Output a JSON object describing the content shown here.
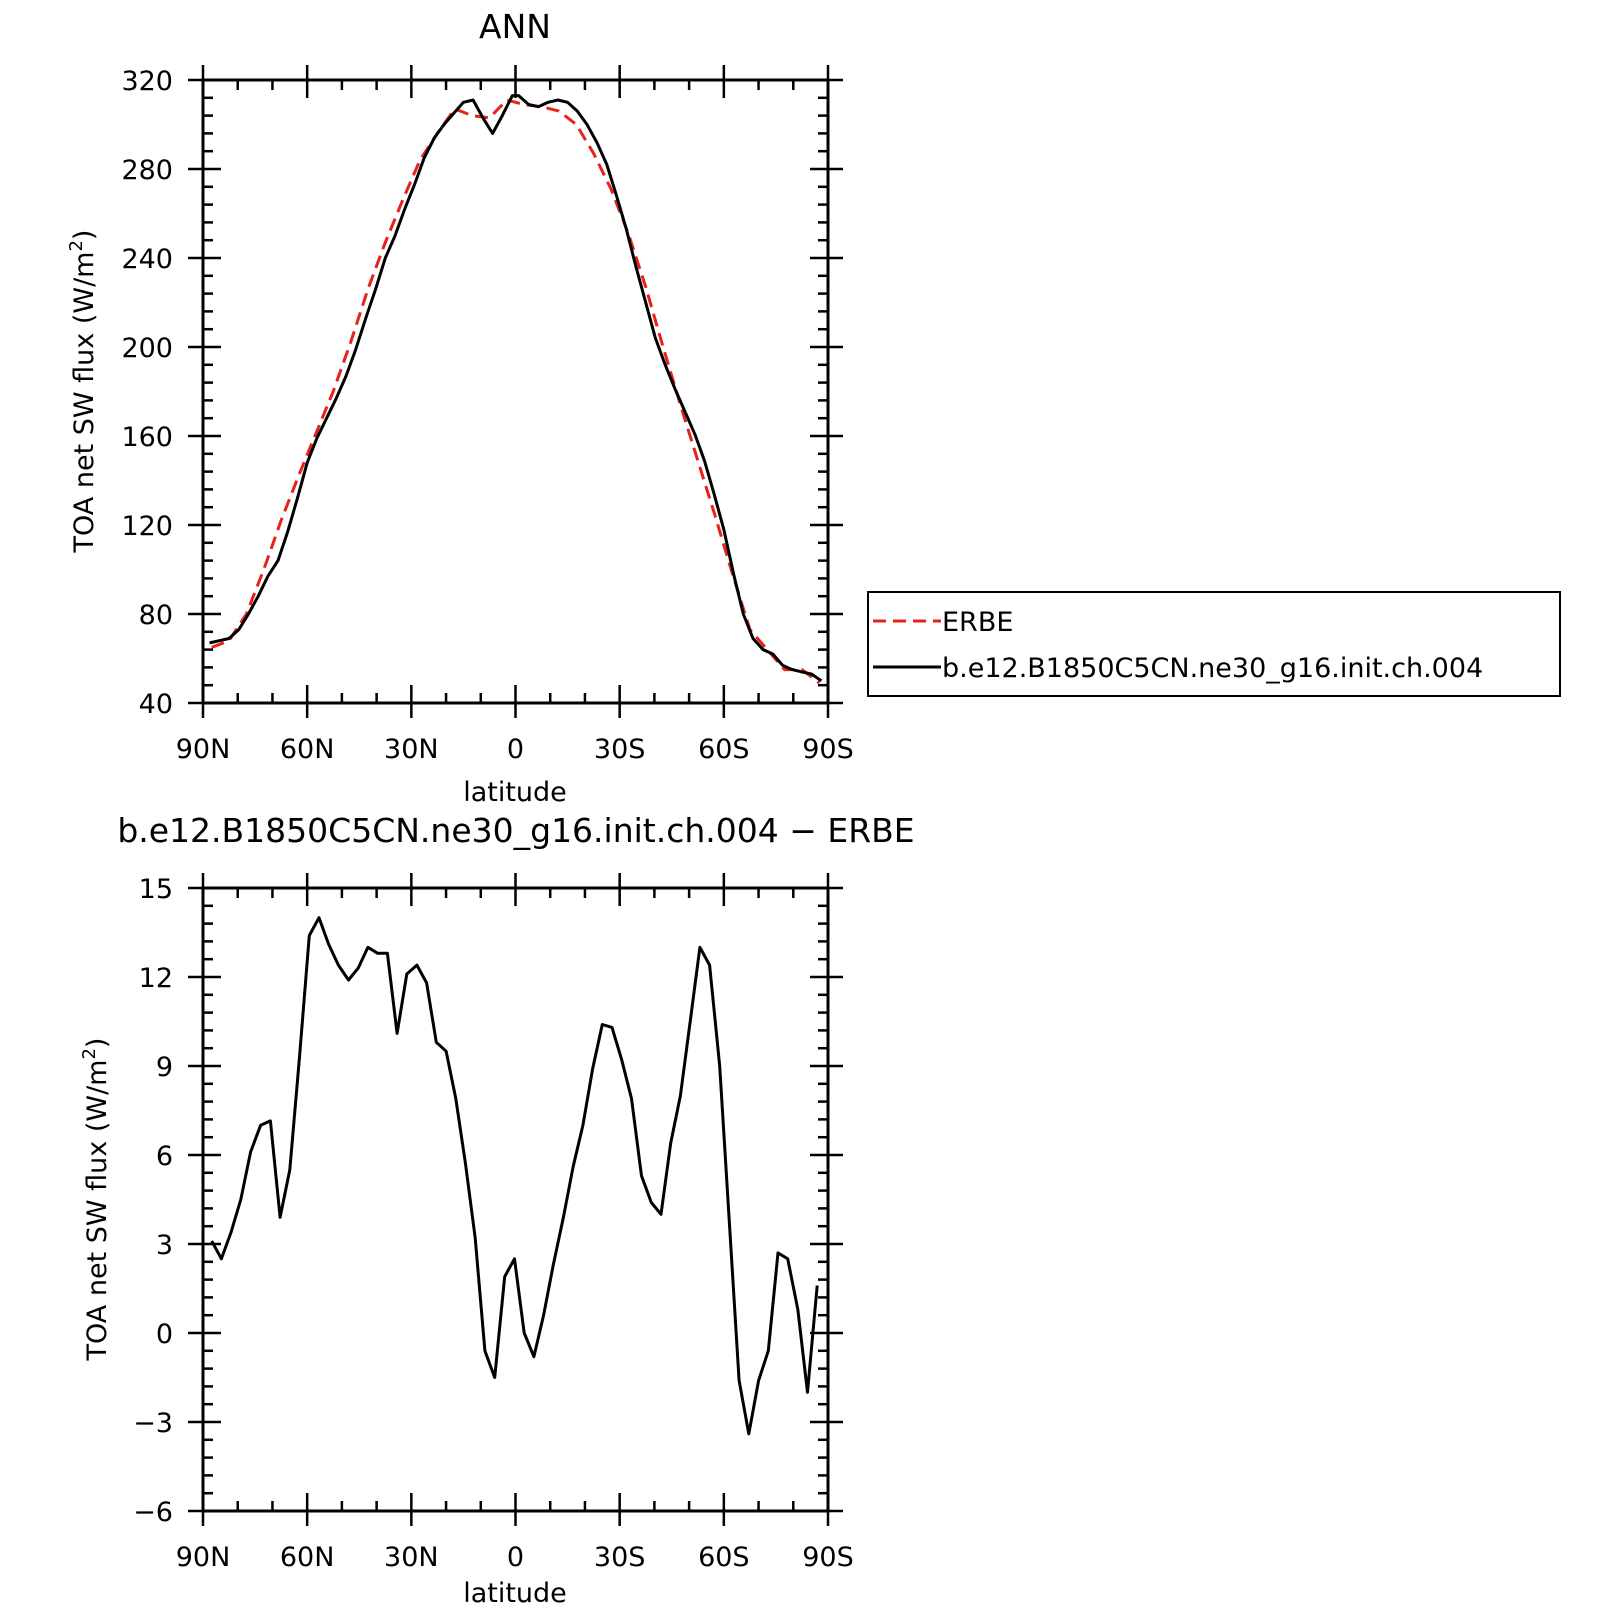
{
  "colors": {
    "obs": "#e8221b",
    "model": "#000000"
  },
  "chart_data": [
    {
      "type": "line",
      "title": "ANN",
      "xlabel": "latitude",
      "ylabel": "TOA net SW flux (W/m2)",
      "ylabel_parts": {
        "main": "TOA net SW flux (W/m",
        "sup": "2",
        "close": ")"
      },
      "xlim": [
        90,
        -90
      ],
      "ylim": [
        40,
        320
      ],
      "xticks": [
        90,
        60,
        30,
        0,
        -30,
        -60,
        -90
      ],
      "xtick_labels": [
        "90N",
        "60N",
        "30N",
        "0",
        "30S",
        "60S",
        "90S"
      ],
      "yticks": [
        40,
        80,
        120,
        160,
        200,
        240,
        280,
        320
      ],
      "ytick_labels": [
        "40",
        "80",
        "120",
        "160",
        "200",
        "240",
        "280",
        "320"
      ],
      "legend": {
        "placement": "right",
        "entries": [
          "ERBE",
          "b.e12.B1850C5CN.ne30_g16.init.ch.004"
        ]
      },
      "series": [
        {
          "name": "ERBE",
          "style": "dashed",
          "color": "#e8221b",
          "x": [
            87.5,
            82.5,
            77.5,
            72.5,
            67.5,
            62.5,
            57.5,
            52.5,
            47.5,
            42.5,
            37.5,
            32.5,
            27.5,
            22.5,
            17.5,
            12.5,
            7.5,
            2.5,
            -2.5,
            -7.5,
            -12.5,
            -17.5,
            -22.5,
            -27.5,
            -32.5,
            -37.5,
            -42.5,
            -47.5,
            -52.5,
            -57.5,
            -62.5,
            -67.5,
            -72.5,
            -77.5,
            -82.5,
            -87.5
          ],
          "y": [
            65,
            68,
            80,
            100,
            122,
            142,
            161,
            180,
            202,
            226,
            247,
            266,
            284,
            296,
            307,
            304,
            303,
            311,
            309,
            308,
            306,
            300,
            287,
            271,
            251,
            227,
            200,
            174,
            149,
            124,
            98,
            73,
            64,
            55,
            55,
            49
          ]
        },
        {
          "name": "b.e12.B1850C5CN.ne30_g16.init.ch.004",
          "style": "solid",
          "color": "#000000",
          "x": [
            88.1,
            85.3,
            82.5,
            79.7,
            76.9,
            74.1,
            71.3,
            68.4,
            65.6,
            62.8,
            60.0,
            57.2,
            54.4,
            51.6,
            48.8,
            46.0,
            43.1,
            40.3,
            37.5,
            34.7,
            31.9,
            29.1,
            26.3,
            23.4,
            20.6,
            17.8,
            15.0,
            12.2,
            9.4,
            6.6,
            3.8,
            0.9,
            -0.9,
            -3.8,
            -6.6,
            -9.4,
            -12.2,
            -15.0,
            -17.8,
            -20.6,
            -23.4,
            -26.3,
            -29.1,
            -31.9,
            -34.7,
            -37.5,
            -40.3,
            -43.1,
            -46.0,
            -48.8,
            -51.6,
            -54.4,
            -57.2,
            -60.0,
            -62.8,
            -65.6,
            -68.4,
            -71.3,
            -74.1,
            -76.9,
            -79.7,
            -82.5,
            -85.3,
            -88.1
          ],
          "y": [
            67,
            68,
            69,
            73,
            80,
            88,
            97,
            104,
            117,
            132,
            148,
            159,
            168,
            177,
            187,
            199,
            213,
            226,
            240,
            250,
            262,
            273,
            285,
            294,
            300,
            305,
            310,
            311,
            303,
            296,
            304,
            313,
            313,
            309,
            308,
            310,
            311,
            310,
            306,
            300,
            292,
            282,
            268,
            253,
            236,
            220,
            204,
            192,
            181,
            171,
            161,
            149,
            134,
            118,
            98,
            80,
            69,
            64,
            62,
            57,
            55,
            54,
            53,
            50
          ]
        }
      ]
    },
    {
      "type": "line",
      "title": "b.e12.B1850C5CN.ne30_g16.init.ch.004 − ERBE",
      "xlabel": "latitude",
      "ylabel": "TOA net SW flux (W/m2)",
      "ylabel_parts": {
        "main": "TOA net SW flux (W/m",
        "sup": "2",
        "close": ")"
      },
      "xlim": [
        90,
        -90
      ],
      "ylim": [
        -6,
        15
      ],
      "xticks": [
        90,
        60,
        30,
        0,
        -30,
        -60,
        -90
      ],
      "xtick_labels": [
        "90N",
        "60N",
        "30N",
        "0",
        "30S",
        "60S",
        "90S"
      ],
      "yticks": [
        -6,
        -3,
        0,
        3,
        6,
        9,
        12,
        15
      ],
      "ytick_labels": [
        "−6",
        "−3",
        "0",
        "3",
        "6",
        "9",
        "12",
        "15"
      ],
      "series": [
        {
          "style": "solid",
          "color": "#000000",
          "x": [
            87.5,
            84.7,
            81.9,
            79.1,
            76.3,
            73.4,
            70.6,
            67.8,
            65.0,
            62.2,
            59.4,
            56.6,
            53.8,
            51.0,
            48.1,
            45.3,
            42.5,
            39.7,
            36.9,
            34.1,
            31.3,
            28.4,
            25.6,
            22.8,
            20.0,
            17.2,
            14.4,
            11.6,
            8.8,
            6.0,
            3.1,
            0.3,
            -2.5,
            -5.3,
            -8.1,
            -10.9,
            -13.8,
            -16.6,
            -19.4,
            -22.2,
            -25.0,
            -27.8,
            -30.6,
            -33.4,
            -36.3,
            -39.1,
            -41.9,
            -44.7,
            -47.5,
            -50.3,
            -53.1,
            -55.9,
            -58.8,
            -61.6,
            -64.4,
            -67.2,
            -70.0,
            -72.8,
            -75.6,
            -78.4,
            -81.3,
            -84.1,
            -86.9
          ],
          "y": [
            3.1,
            2.5,
            3.4,
            4.5,
            6.1,
            7.0,
            7.15,
            3.9,
            5.5,
            9.3,
            13.4,
            14.0,
            13.1,
            12.4,
            11.9,
            12.3,
            13.0,
            12.8,
            12.8,
            10.1,
            12.1,
            12.4,
            11.8,
            9.8,
            9.5,
            7.9,
            5.7,
            3.2,
            -0.6,
            -1.5,
            1.9,
            2.5,
            0.0,
            -0.8,
            0.6,
            2.3,
            3.9,
            5.6,
            7.0,
            8.9,
            10.4,
            10.3,
            9.2,
            7.9,
            5.3,
            4.4,
            4.0,
            6.4,
            8.0,
            10.5,
            13.0,
            12.4,
            9.0,
            3.7,
            -1.6,
            -3.4,
            -1.6,
            -0.6,
            2.7,
            2.5,
            0.8,
            -2.0,
            1.6
          ]
        }
      ]
    }
  ]
}
